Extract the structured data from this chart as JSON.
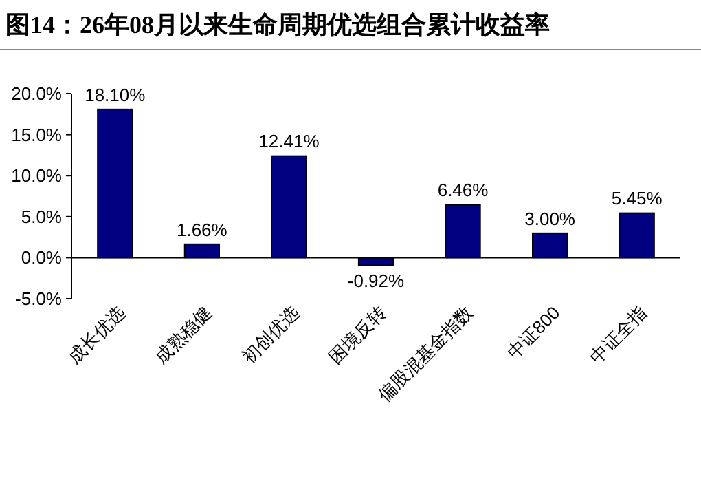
{
  "chart_data": {
    "type": "bar",
    "title": "图14：26年08月以来生命周期优选组合累计收益率",
    "categories": [
      "成长优选",
      "成熟稳健",
      "初创优选",
      "困境反转",
      "偏股混基金指数",
      "中证800",
      "中证全指"
    ],
    "values": [
      18.1,
      1.66,
      12.41,
      -0.92,
      6.46,
      3.0,
      5.45
    ],
    "value_labels": [
      "18.10%",
      "1.66%",
      "12.41%",
      "-0.92%",
      "6.46%",
      "3.00%",
      "5.45%"
    ],
    "color": "#000080",
    "ylim": [
      -5,
      20
    ],
    "yticks": [
      {
        "value": -5,
        "label": "-5.0%"
      },
      {
        "value": 0,
        "label": "0.0%"
      },
      {
        "value": 5,
        "label": "5.0%"
      },
      {
        "value": 10,
        "label": "10.0%"
      },
      {
        "value": 15,
        "label": "15.0%"
      },
      {
        "value": 20,
        "label": "20.0%"
      }
    ],
    "data_labels": true
  }
}
